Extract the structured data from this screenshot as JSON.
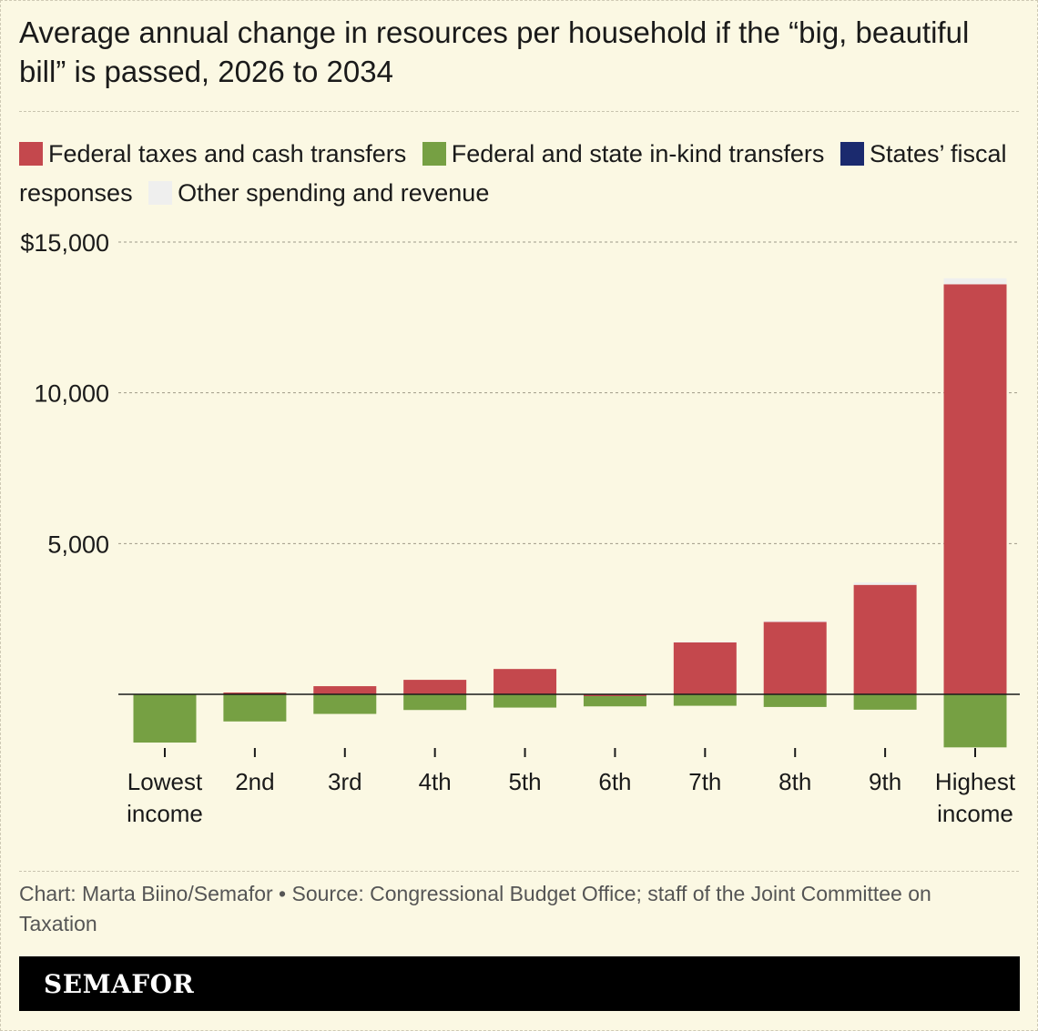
{
  "title": "Average annual change in resources per household if the “big, beautiful bill” is passed, 2026 to 2034",
  "legend": [
    {
      "label": "Federal taxes and cash transfers",
      "color": "#c4484d"
    },
    {
      "label": "Federal and state in-kind transfers",
      "color": "#76a043"
    },
    {
      "label": "States’ fiscal responses",
      "color": "#1b2a6e"
    },
    {
      "label": "Other spending and revenue",
      "color": "#efefee"
    }
  ],
  "chart_data": {
    "type": "bar",
    "stacked": true,
    "title": "Average annual change in resources per household if the “big, beautiful bill” is passed, 2026 to 2034",
    "xlabel": "",
    "ylabel": "",
    "ylim": [
      -2000,
      15000
    ],
    "yticks": [
      5000,
      10000,
      15000
    ],
    "ytick_labels": [
      "5,000",
      "10,000",
      "$15,000"
    ],
    "grid": true,
    "legend_position": "top",
    "categories": [
      [
        "Lowest",
        "income"
      ],
      [
        "2nd"
      ],
      [
        "3rd"
      ],
      [
        "4th"
      ],
      [
        "5th"
      ],
      [
        "6th"
      ],
      [
        "7th"
      ],
      [
        "8th"
      ],
      [
        "9th"
      ],
      [
        "Highest",
        "income"
      ]
    ],
    "series": [
      {
        "name": "Federal taxes and cash transfers",
        "color": "#c4484d",
        "values": [
          0,
          60,
          270,
          480,
          840,
          -60,
          1720,
          2400,
          3630,
          13600
        ]
      },
      {
        "name": "Federal and state in-kind transfers",
        "color": "#76a043",
        "values": [
          -1600,
          -900,
          -650,
          -520,
          -440,
          -340,
          -380,
          -420,
          -510,
          -1760
        ]
      },
      {
        "name": "States’ fiscal responses",
        "color": "#1b2a6e",
        "values": [
          0,
          0,
          0,
          0,
          0,
          0,
          0,
          0,
          0,
          0
        ]
      },
      {
        "name": "Other spending and revenue",
        "color": "#efefee",
        "values": [
          0,
          0,
          0,
          0,
          0,
          0,
          20,
          40,
          80,
          200
        ]
      }
    ]
  },
  "source": "Chart: Marta Biino/Semafor • Source: Congressional Budget Office; staff of the Joint Committee on Taxation",
  "brand": "SEMAFOR"
}
